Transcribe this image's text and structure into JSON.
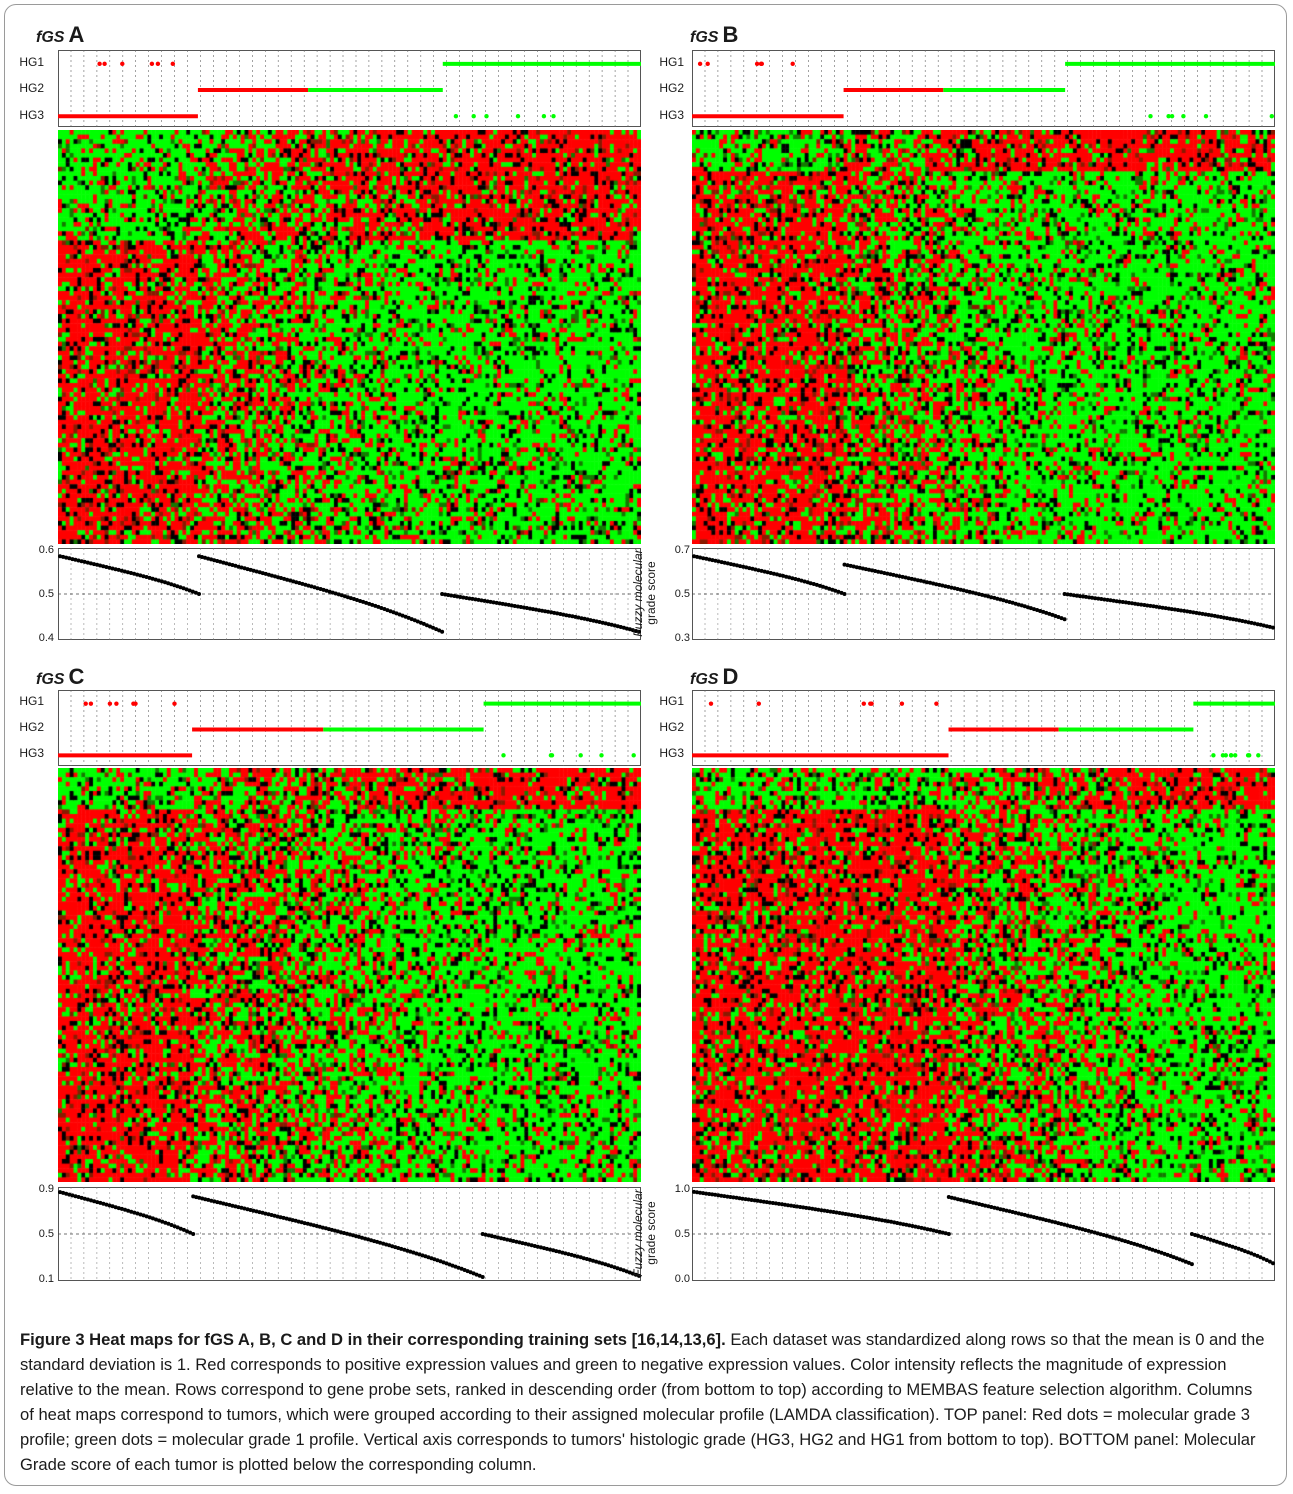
{
  "figure": {
    "caption_title": "Figure 3 Heat maps for fGS A, B, C and D in their corresponding training sets [16,14,13,6].",
    "caption_body": "Each dataset was standardized along rows so that the mean is 0 and the standard deviation is 1. Red corresponds to positive expression values and green to negative expression values. Color intensity reflects the magnitude of expression relative to the mean. Rows correspond to gene probe sets, ranked in descending order (from bottom to top) according to MEMBAS feature selection algorithm. Columns of heat maps correspond to tumors, which were grouped according to their assigned molecular profile (LAMDA classification). TOP panel: Red dots = molecular grade 3 profile; green dots = molecular grade 1 profile. Vertical axis corresponds to tumors' histologic grade (HG3, HG2 and HG1 from bottom to top). BOTTOM panel: Molecular Grade score of each tumor is plotted below the corresponding column."
  },
  "colors": {
    "red": "#ff0000",
    "green": "#00ff00",
    "black": "#000000"
  },
  "chart_data": [
    {
      "type": "heatmap",
      "panel": "A",
      "title_prefix": "fGS",
      "title_letter": "A",
      "hg_labels": [
        "HG1",
        "HG2",
        "HG3"
      ],
      "score_label_line1": "Fuzzy molecular",
      "score_label_line2": "grade score",
      "yticks": [
        "0.6",
        "0.5",
        "0.4"
      ],
      "ylim": [
        0.4,
        0.6
      ],
      "groups": [
        {
          "profile": "molecular grade 3",
          "score_start": 0.59,
          "score_end": 0.5,
          "hg_row": "HG3",
          "frac": 0.24
        },
        {
          "profile": "mixed",
          "score_start": 0.59,
          "score_end": 0.41,
          "hg_row": "HG2",
          "frac": 0.42
        },
        {
          "profile": "molecular grade 1",
          "score_start": 0.5,
          "score_end": 0.41,
          "hg_row": "HG1",
          "frac": 0.34
        }
      ]
    },
    {
      "type": "heatmap",
      "panel": "B",
      "title_prefix": "fGS",
      "title_letter": "B",
      "hg_labels": [
        "HG1",
        "HG2",
        "HG3"
      ],
      "score_label_line1": "Fuzzy molecular",
      "score_label_line2": "grade score",
      "yticks": [
        "0.7",
        "0.5",
        "0.3"
      ],
      "ylim": [
        0.3,
        0.7
      ],
      "groups": [
        {
          "profile": "molecular grade 3",
          "score_start": 0.68,
          "score_end": 0.5,
          "hg_row": "HG3",
          "frac": 0.26
        },
        {
          "profile": "mixed",
          "score_start": 0.64,
          "score_end": 0.38,
          "hg_row": "HG2",
          "frac": 0.38
        },
        {
          "profile": "molecular grade 1",
          "score_start": 0.5,
          "score_end": 0.34,
          "hg_row": "HG1",
          "frac": 0.36
        }
      ]
    },
    {
      "type": "heatmap",
      "panel": "C",
      "title_prefix": "fGS",
      "title_letter": "C",
      "hg_labels": [
        "HG1",
        "HG2",
        "HG3"
      ],
      "score_label_line1": "Fuzzy molecular",
      "score_label_line2": "grade score",
      "yticks": [
        "0.9",
        "0.5",
        "0.1"
      ],
      "ylim": [
        0.1,
        0.9
      ],
      "groups": [
        {
          "profile": "molecular grade 3",
          "score_start": 0.89,
          "score_end": 0.5,
          "hg_row": "HG3",
          "frac": 0.23
        },
        {
          "profile": "mixed",
          "score_start": 0.85,
          "score_end": 0.1,
          "hg_row": "HG2",
          "frac": 0.5
        },
        {
          "profile": "molecular grade 1",
          "score_start": 0.5,
          "score_end": 0.11,
          "hg_row": "HG1",
          "frac": 0.27
        }
      ]
    },
    {
      "type": "heatmap",
      "panel": "D",
      "title_prefix": "fGS",
      "title_letter": "D",
      "hg_labels": [
        "HG1",
        "HG2",
        "HG3"
      ],
      "score_label_line1": "Fuzzy molecular",
      "score_label_line2": "grade score",
      "yticks": [
        "1.0",
        "0.5",
        "0.0"
      ],
      "ylim": [
        0.0,
        1.0
      ],
      "groups": [
        {
          "profile": "molecular grade 3",
          "score_start": 0.99,
          "score_end": 0.5,
          "hg_row": "HG3",
          "frac": 0.44
        },
        {
          "profile": "mixed",
          "score_start": 0.93,
          "score_end": 0.15,
          "hg_row": "HG2",
          "frac": 0.42
        },
        {
          "profile": "molecular grade 1",
          "score_start": 0.5,
          "score_end": 0.16,
          "hg_row": "HG1",
          "frac": 0.14
        }
      ]
    }
  ]
}
